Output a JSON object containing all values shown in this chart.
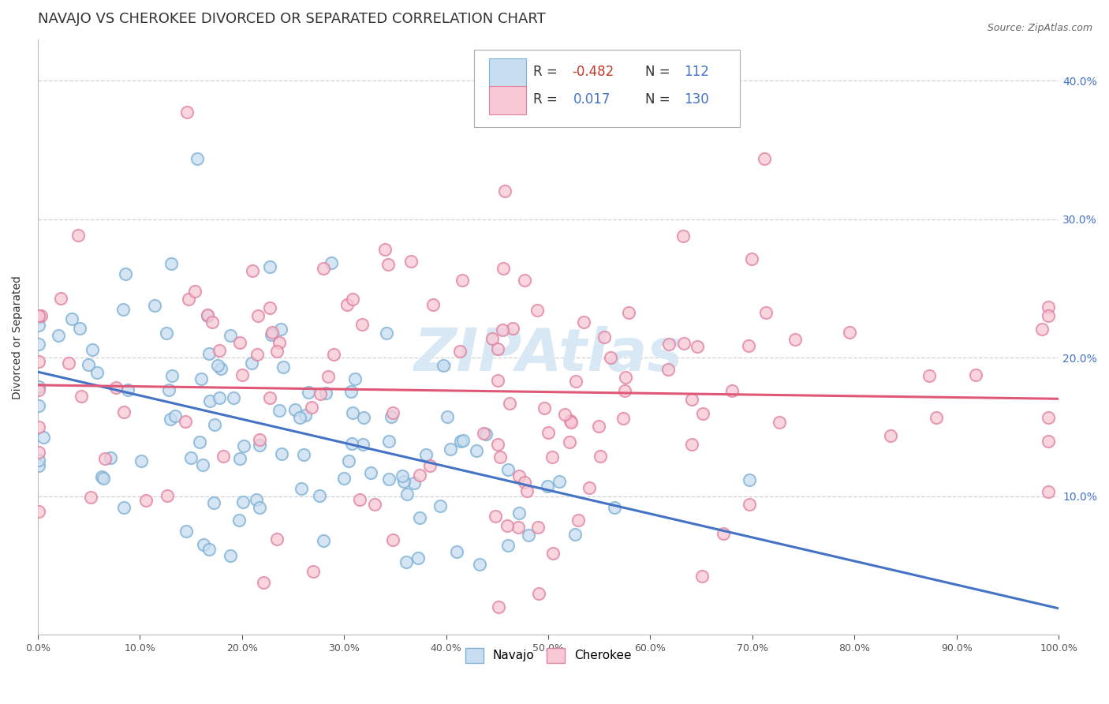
{
  "title": "NAVAJO VS CHEROKEE DIVORCED OR SEPARATED CORRELATION CHART",
  "source_text": "Source: ZipAtlas.com",
  "ylabel": "Divorced or Separated",
  "xlim": [
    0.0,
    1.0
  ],
  "ylim": [
    0.0,
    0.43
  ],
  "xticks": [
    0.0,
    0.1,
    0.2,
    0.3,
    0.4,
    0.5,
    0.6,
    0.7,
    0.8,
    0.9,
    1.0
  ],
  "xticklabels": [
    "0.0%",
    "10.0%",
    "20.0%",
    "30.0%",
    "40.0%",
    "50.0%",
    "60.0%",
    "70.0%",
    "80.0%",
    "90.0%",
    "100.0%"
  ],
  "yticks": [
    0.1,
    0.2,
    0.3,
    0.4
  ],
  "yticklabels": [
    "10.0%",
    "20.0%",
    "30.0%",
    "40.0%"
  ],
  "navajo_fill": "#c8ddf0",
  "navajo_edge": "#7bafd4",
  "cherokee_fill": "#f8c8d4",
  "cherokee_edge": "#e080a0",
  "navajo_line_color": "#4472c4",
  "cherokee_line_color": "#e05878",
  "watermark_color": "#d8e8f4",
  "legend_R_navajo": "-0.482",
  "legend_N_navajo": "112",
  "legend_R_cherokee": "0.017",
  "legend_N_cherokee": "130",
  "navajo_R": -0.482,
  "cherokee_R": 0.017,
  "background_color": "#ffffff",
  "grid_color": "#cccccc",
  "title_fontsize": 13,
  "tick_fontsize": 9,
  "legend_fontsize": 12,
  "ytick_color": "#4472c4",
  "xtick_color": "#555555"
}
